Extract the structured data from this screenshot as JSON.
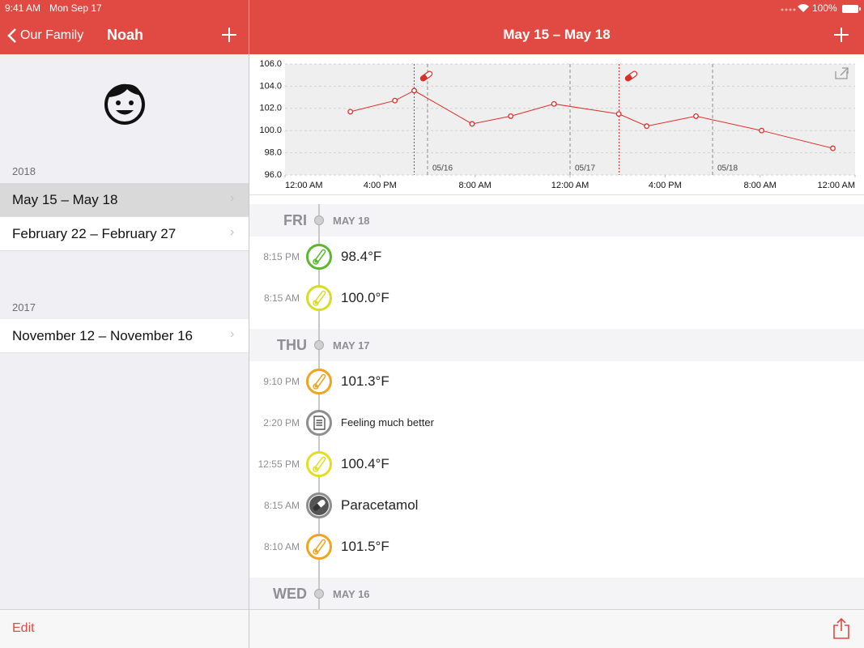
{
  "status": {
    "time": "9:41 AM",
    "date": "Mon Sep 17",
    "battery": "100%"
  },
  "sidebar": {
    "back": "Our Family",
    "title": "Noah",
    "sections": [
      {
        "year": "2018",
        "items": [
          "May 15 – May 18",
          "February 22 – February 27"
        ]
      },
      {
        "year": "2017",
        "items": [
          "November 12 – November 16"
        ]
      }
    ],
    "selected": "May 15 – May 18",
    "edit": "Edit"
  },
  "main": {
    "title": "May 15 – May 18"
  },
  "chart": {
    "type": "line",
    "color": "#d9302a",
    "x": [
      11,
      18.5,
      21.75,
      31.5,
      38,
      45.3,
      56.2,
      60.9,
      69.2,
      80.25,
      92.25
    ],
    "values": [
      101.7,
      102.7,
      103.6,
      100.6,
      101.3,
      102.4,
      101.5,
      100.4,
      101.3,
      100.0,
      98.4
    ],
    "xlim": [
      0,
      96
    ],
    "xticks": [
      {
        "value": 0,
        "label": "12:00 AM"
      },
      {
        "value": 16,
        "label": "4:00 PM"
      },
      {
        "value": 32,
        "label": "8:00 AM"
      },
      {
        "value": 48,
        "label": "12:00 AM"
      },
      {
        "value": 64,
        "label": "4:00 PM"
      },
      {
        "value": 80,
        "label": "8:00 AM"
      },
      {
        "value": 96,
        "label": "12:00 AM"
      }
    ],
    "ylim": [
      96,
      106
    ],
    "yticks": [
      {
        "value": 96,
        "label": "96.0"
      },
      {
        "value": 98,
        "label": "98.0"
      },
      {
        "value": 100,
        "label": "100.0"
      },
      {
        "value": 102,
        "label": "102.0"
      },
      {
        "value": 104,
        "label": "104.0"
      },
      {
        "value": 106,
        "label": "106.0"
      }
    ],
    "day_markers": [
      {
        "value": 24,
        "label": "05/16"
      },
      {
        "value": 48,
        "label": "05/17"
      },
      {
        "value": 72,
        "label": "05/18"
      }
    ],
    "medications": [
      21.75,
      56.25
    ],
    "grid": true
  },
  "timeline": [
    {
      "day": "FRI",
      "date": "MAY 18",
      "entries": [
        {
          "time": "8:15 PM",
          "text": "98.4°F",
          "icon": "thermometer",
          "color": "#5cb82e"
        },
        {
          "time": "8:15 AM",
          "text": "100.0°F",
          "icon": "thermometer",
          "color": "#d8dc26"
        }
      ]
    },
    {
      "day": "THU",
      "date": "MAY 17",
      "entries": [
        {
          "time": "9:10 PM",
          "text": "101.3°F",
          "icon": "thermometer",
          "color": "#f0a51e"
        },
        {
          "time": "2:20 PM",
          "text": "Feeling much better",
          "icon": "note",
          "color": "#8e8e8e"
        },
        {
          "time": "12:55 PM",
          "text": "100.4°F",
          "icon": "thermometer",
          "color": "#e3de22"
        },
        {
          "time": "8:15 AM",
          "text": "Paracetamol",
          "icon": "pill",
          "color": "#8e8e8e"
        },
        {
          "time": "8:10 AM",
          "text": "101.5°F",
          "icon": "thermometer",
          "color": "#f0a51e"
        }
      ]
    },
    {
      "day": "WED",
      "date": "MAY 16",
      "entries": []
    }
  ]
}
